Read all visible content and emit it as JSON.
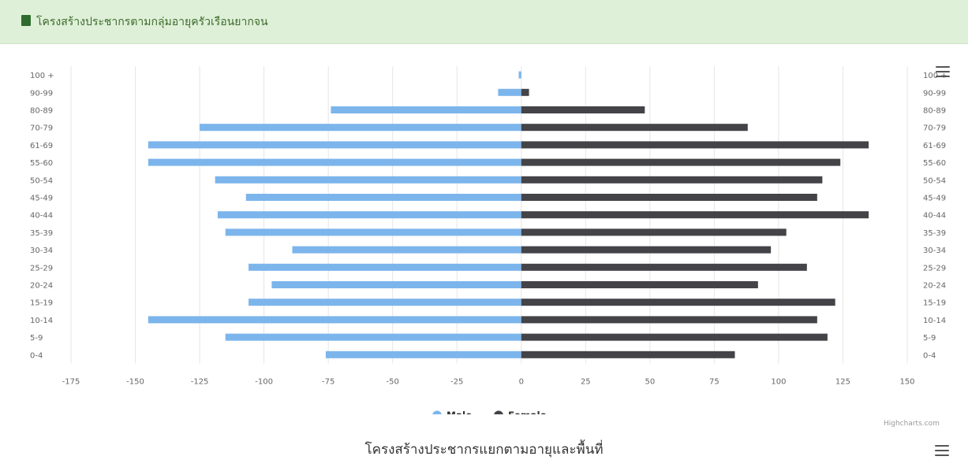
{
  "header": {
    "title": "โครงสร้างประชากรตามกลุ่มอายุครัวเรือนยากจน"
  },
  "colors": {
    "male": "#7cb5ec",
    "female": "#434348",
    "header_bg": "#dff0d8",
    "grid": "#e6e6e6"
  },
  "chart_data": {
    "type": "bar",
    "orientation": "horizontal",
    "title": "",
    "categories": [
      "100 +",
      "90-99",
      "80-89",
      "70-79",
      "61-69",
      "55-60",
      "50-54",
      "45-49",
      "40-44",
      "35-39",
      "30-34",
      "25-29",
      "20-24",
      "15-19",
      "10-14",
      "5-9",
      "0-4"
    ],
    "series": [
      {
        "name": "Male",
        "values": [
          -1,
          -9,
          -74,
          -125,
          -145,
          -145,
          -119,
          -107,
          -118,
          -115,
          -89,
          -106,
          -97,
          -106,
          -145,
          -115,
          -76
        ]
      },
      {
        "name": "Female",
        "values": [
          0,
          3,
          48,
          88,
          135,
          124,
          117,
          115,
          135,
          103,
          97,
          111,
          92,
          122,
          115,
          119,
          83
        ]
      }
    ],
    "xlim": [
      -175,
      150
    ],
    "xticks": [
      -175,
      -150,
      -125,
      -100,
      -75,
      -50,
      -25,
      0,
      25,
      50,
      75,
      100,
      125,
      150
    ],
    "grid": true,
    "legend_position": "bottom-center"
  },
  "credits": "Highcharts.com",
  "next_chart": {
    "title": "โครงสร้างประชากรแยกตามอายุและพื้นที่"
  }
}
